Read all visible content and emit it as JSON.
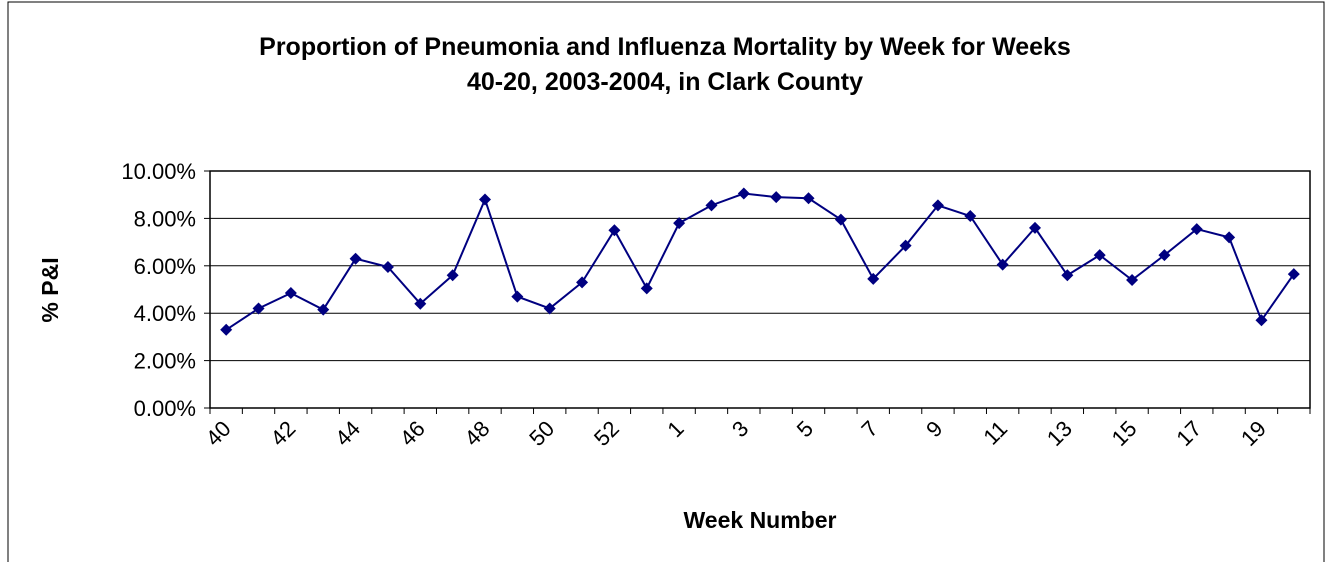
{
  "chart_data": {
    "type": "line",
    "title": "Proportion of Pneumonia and Influenza Mortality by Week for Weeks",
    "subtitle": "40-20, 2003-2004, in Clark County",
    "x_label": "Week Number",
    "y_label": "% P&I",
    "categories": [
      "40",
      null,
      "42",
      null,
      "44",
      null,
      "46",
      null,
      "48",
      null,
      "50",
      null,
      "52",
      null,
      "1",
      null,
      "3",
      null,
      "5",
      null,
      "7",
      null,
      "9",
      null,
      "11",
      null,
      "13",
      null,
      "15",
      null,
      "17",
      null,
      "19",
      null
    ],
    "series": [
      {
        "name": "% P&I",
        "color": "#000080",
        "values": [
          3.3,
          4.2,
          4.85,
          4.15,
          6.3,
          5.95,
          4.4,
          5.6,
          8.8,
          4.7,
          4.2,
          5.3,
          7.5,
          5.05,
          7.8,
          8.55,
          9.05,
          8.9,
          8.85,
          7.95,
          5.45,
          6.85,
          8.55,
          8.1,
          6.05,
          7.6,
          5.6,
          6.45,
          5.4,
          6.45,
          7.55,
          7.2,
          3.7,
          5.65
        ]
      }
    ],
    "ylim": [
      0,
      10
    ],
    "yticks": [
      {
        "value": 0,
        "label": "0.00%"
      },
      {
        "value": 2,
        "label": "2.00%"
      },
      {
        "value": 4,
        "label": "4.00%"
      },
      {
        "value": 6,
        "label": "6.00%"
      },
      {
        "value": 8,
        "label": "8.00%"
      },
      {
        "value": 10,
        "label": "10.00%"
      }
    ],
    "grid": true
  }
}
